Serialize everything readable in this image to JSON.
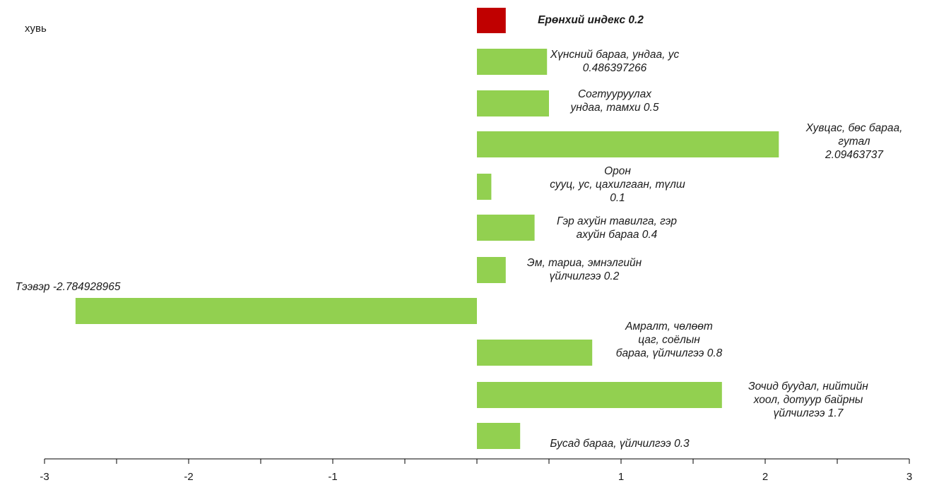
{
  "chart_data": {
    "type": "bar",
    "orientation": "horizontal",
    "unit_label": "хувь",
    "xlim": [
      -3,
      3
    ],
    "x_ticks": [
      "-3",
      "-2",
      "-1",
      "1",
      "2",
      "3"
    ],
    "colors": {
      "total": "#c00000",
      "category": "#92d050",
      "axis": "#000000"
    },
    "bars": [
      {
        "label": "Ерөнхий индекс   0.2",
        "value": 0.2,
        "kind": "total"
      },
      {
        "label": "Хүнсний бараа,  ундаа,  ус\n0.486397266",
        "value": 0.486397266,
        "kind": "category"
      },
      {
        "label": "Согтууруулах\nундаа, тамхи   0.5",
        "value": 0.5,
        "kind": "category"
      },
      {
        "label": "Хувцас, бөс бараа,  гутал\n2.09463737",
        "value": 2.09463737,
        "kind": "category"
      },
      {
        "label": "Орон\nсууц, ус, цахилгаан,  түлш\n0.1",
        "value": 0.1,
        "kind": "category"
      },
      {
        "label": "Гэр ахуйн тавилга,  гэр\nахуйн бараа     0.4",
        "value": 0.4,
        "kind": "category"
      },
      {
        "label": "Эм, тариа,  эмнэлгийн\nүйлчилгээ     0.2",
        "value": 0.2,
        "kind": "category"
      },
      {
        "label": "Тээвэр -2.784928965",
        "value": -2.784928965,
        "kind": "category"
      },
      {
        "label": "Амралт,  чөлөөт\nцаг,  соёлын\nбараа,  үйлчилгээ  0.8",
        "value": 0.8,
        "kind": "category"
      },
      {
        "label": "Зочид буудал,  нийтийн\nхоол, дотуур  байрны\nүйлчилгээ     1.7",
        "value": 1.7,
        "kind": "category"
      },
      {
        "label": "Бусад бараа,  үйлчилгээ  0.3",
        "value": 0.3,
        "kind": "category"
      }
    ]
  }
}
